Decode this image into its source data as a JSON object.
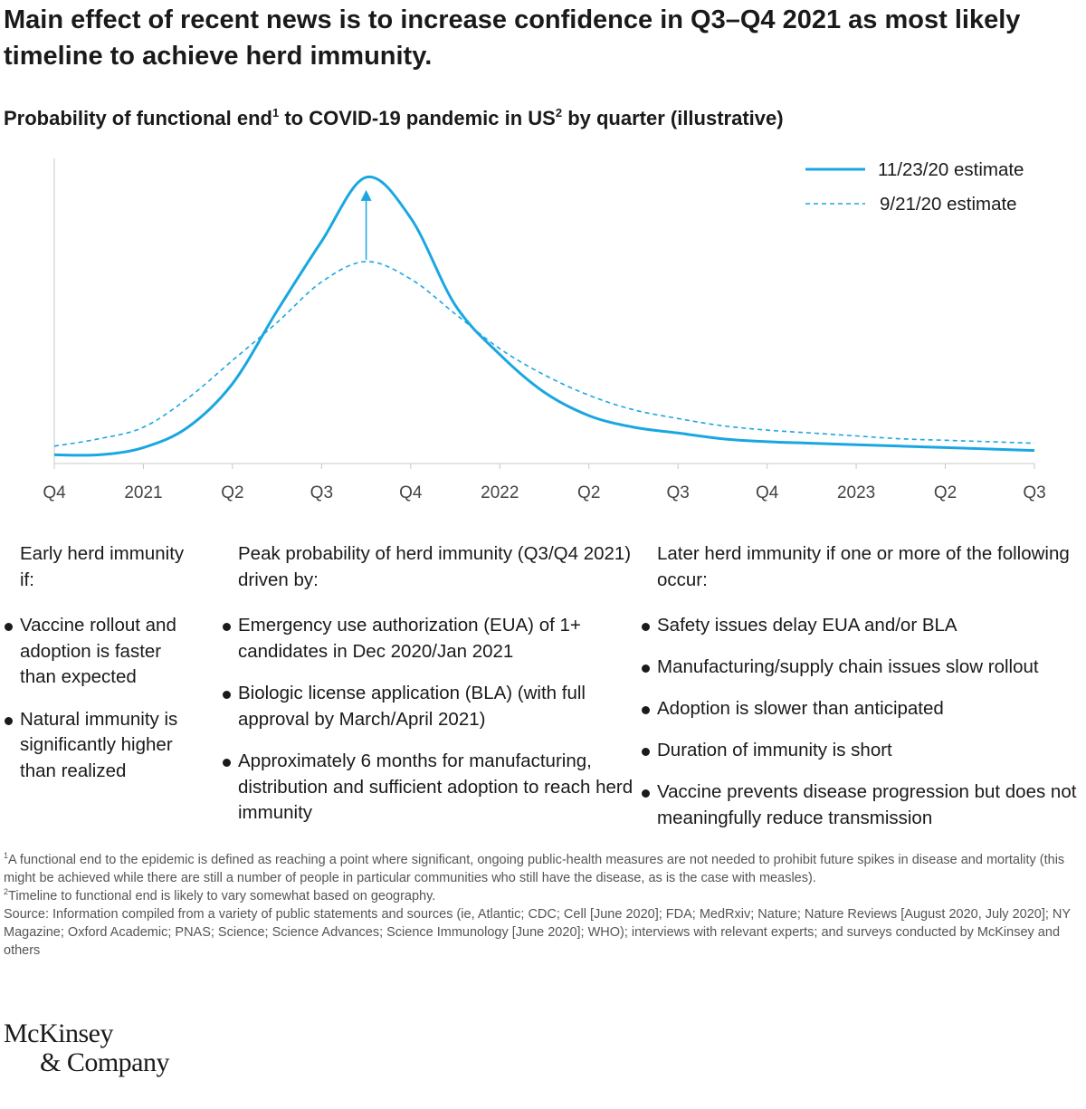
{
  "title": "Main effect of recent news is to increase confidence in Q3–Q4 2021 as most likely timeline to achieve herd immunity.",
  "subtitle": {
    "part1": "Probability of functional end",
    "sup1": "1",
    "part2": " to COVID-19 pandemic in US",
    "sup2": "2",
    "part3": " by quarter (illustrative)"
  },
  "chart_data": {
    "type": "line",
    "categories": [
      "Q4",
      "2021",
      "Q2",
      "Q3",
      "Q4",
      "2022",
      "Q2",
      "Q3",
      "Q4",
      "2023",
      "Q2",
      "Q3"
    ],
    "x": [
      0,
      0.5,
      1,
      1.5,
      2,
      2.5,
      3,
      3.5,
      4,
      4.5,
      5,
      5.5,
      6,
      6.5,
      7,
      7.5,
      8,
      8.5,
      9,
      9.5,
      10,
      10.5,
      11
    ],
    "series": [
      {
        "name": "11/23/20 estimate",
        "style": "solid",
        "color": "#1aa7e1",
        "values": [
          0.5,
          0.5,
          3,
          10,
          25,
          50,
          74,
          96,
          82,
          52,
          35,
          22,
          14,
          10,
          8,
          6,
          5,
          4.5,
          4,
          3.5,
          3,
          2.5,
          2
        ]
      },
      {
        "name": "9/21/20 estimate",
        "style": "dashed",
        "color": "#1aa7e1",
        "values": [
          3.5,
          6,
          10,
          20,
          33,
          46,
          60,
          67,
          61,
          49,
          37,
          28,
          21,
          16,
          13,
          10.5,
          9,
          8,
          7,
          6,
          5.5,
          5,
          4.5
        ]
      }
    ],
    "annotations": [
      "arrow from 9/21/20 peak up to 11/23/20 peak near Q3–Q4 2021"
    ],
    "ylim": [
      0,
      100
    ],
    "y_axis_labels_shown": false,
    "grid": false,
    "legend_position": "top-right"
  },
  "columns": [
    {
      "heading": "Early herd immunity if:",
      "items": [
        "Vaccine rollout and adoption is faster than expected",
        "Natural immunity is significantly higher than realized"
      ]
    },
    {
      "heading": "Peak probability of herd immunity (Q3/Q4 2021) driven by:",
      "items": [
        "Emergency use authorization (EUA) of 1+ candidates in Dec 2020/Jan 2021",
        "Biologic license application (BLA) (with full approval by March/April 2021)",
        "Approximately 6 months for manufacturing, distribution and sufficient adoption to reach herd immunity"
      ]
    },
    {
      "heading": "Later herd immunity if one or more of the following occur:",
      "items": [
        "Safety issues delay EUA and/or BLA",
        "Manufacturing/supply chain issues slow rollout",
        "Adoption is slower than anticipated",
        "Duration of immunity is short",
        "Vaccine prevents disease progression but does not meaningfully reduce transmission"
      ]
    }
  ],
  "footnotes": {
    "fn1_mark": "1",
    "fn1": "A functional end to the epidemic is defined as reaching a point where significant, ongoing public-health measures are not needed to prohibit future spikes in disease and mortality (this might be achieved while there are still a number of people in particular communities who still have the disease, as is the case with measles).",
    "fn2_mark": "2",
    "fn2": "Timeline to functional end is likely to vary somewhat based on geography.",
    "source": "Source: Information compiled from a variety of public statements and sources (ie, Atlantic; CDC; Cell [June 2020]; FDA; MedRxiv; Nature; Nature Reviews [August 2020, July 2020]; NY Magazine; Oxford Academic; PNAS; Science; Science Advances; Science Immunology [June 2020]; WHO); interviews with relevant experts; and surveys conducted by McKinsey and others"
  },
  "logo": {
    "line1": "McKinsey",
    "line2": "& Company"
  },
  "colors": {
    "accent": "#1aa7e1",
    "text": "#1a1a1a",
    "axis": "#c8c8c8",
    "footnote": "#555555"
  }
}
